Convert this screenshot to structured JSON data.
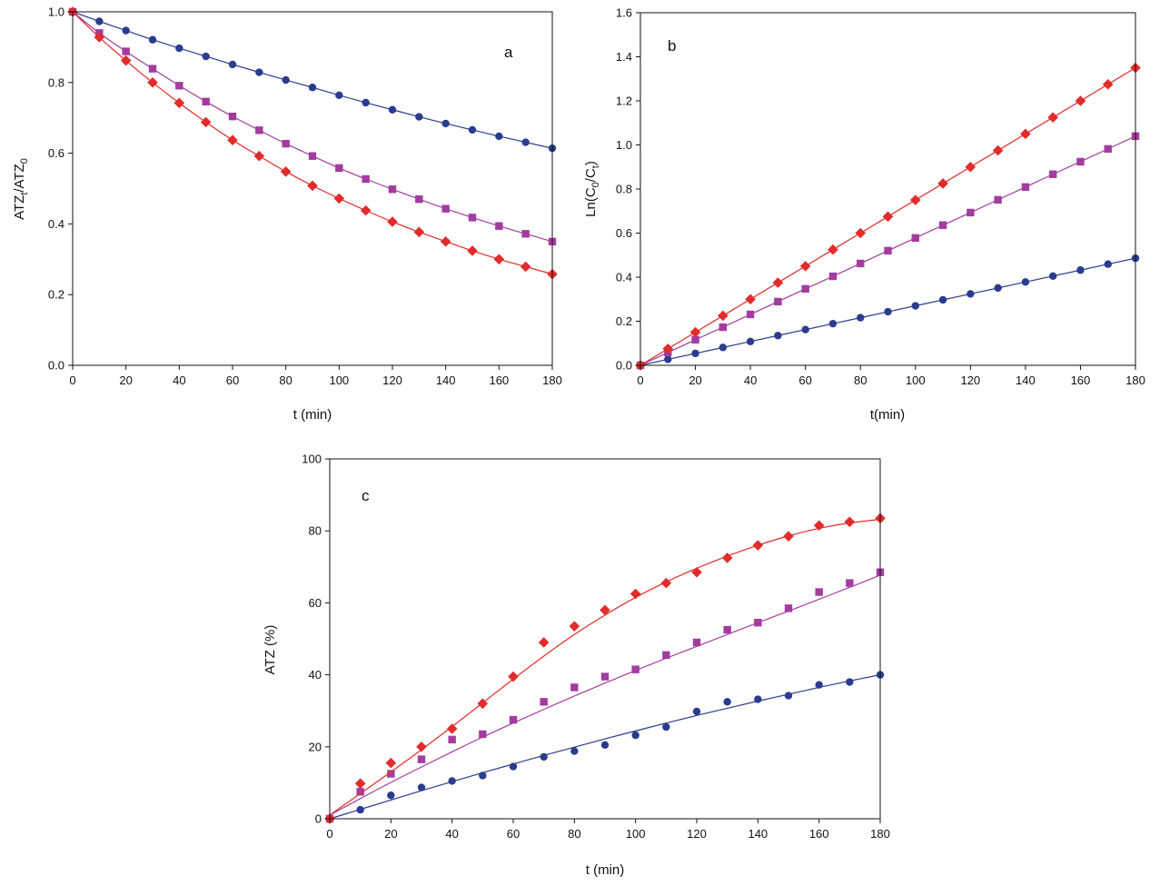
{
  "colors": {
    "blue": "#2b3c8f",
    "magenta": "#a23c9f",
    "red": "#e22b2b",
    "axis": "#111111"
  },
  "chart_data": [
    {
      "type": "line",
      "panel": "a",
      "xlabel": "t (min)",
      "ylabel": {
        "base": "ATZ",
        "sub1": "t",
        "mid": "/ATZ",
        "sub2": "0"
      },
      "xlim": [
        0,
        180
      ],
      "ylim": [
        0.0,
        1.0
      ],
      "xticks": [
        0,
        20,
        40,
        60,
        80,
        100,
        120,
        140,
        160,
        180
      ],
      "yticks": [
        0.0,
        0.2,
        0.4,
        0.6,
        0.8,
        1.0
      ],
      "x_tick_labels": [
        "0",
        "20",
        "40",
        "60",
        "80",
        "100",
        "120",
        "140",
        "160",
        "180"
      ],
      "y_tick_labels": [
        "0.0",
        "0.2",
        "0.4",
        "0.6",
        "0.8",
        "1.0"
      ],
      "x": [
        0,
        10,
        20,
        30,
        40,
        50,
        60,
        70,
        80,
        90,
        100,
        110,
        120,
        130,
        140,
        150,
        160,
        170,
        180
      ],
      "series": [
        {
          "name": "blue-circles",
          "marker": "circle",
          "color": "#2b3c8f",
          "values": [
            1.0,
            0.973,
            0.947,
            0.921,
            0.897,
            0.874,
            0.851,
            0.829,
            0.807,
            0.786,
            0.764,
            0.743,
            0.723,
            0.703,
            0.684,
            0.666,
            0.648,
            0.631,
            0.614
          ]
        },
        {
          "name": "magenta-squares",
          "marker": "square",
          "color": "#a23c9f",
          "values": [
            1.0,
            0.94,
            0.888,
            0.839,
            0.791,
            0.746,
            0.704,
            0.665,
            0.627,
            0.592,
            0.558,
            0.527,
            0.498,
            0.47,
            0.443,
            0.418,
            0.394,
            0.372,
            0.35
          ]
        },
        {
          "name": "red-diamonds",
          "marker": "diamond",
          "color": "#e22b2b",
          "values": [
            1.0,
            0.928,
            0.862,
            0.8,
            0.742,
            0.688,
            0.637,
            0.592,
            0.548,
            0.508,
            0.472,
            0.438,
            0.406,
            0.377,
            0.35,
            0.324,
            0.3,
            0.279,
            0.258
          ]
        }
      ]
    },
    {
      "type": "line",
      "panel": "b",
      "xlabel": "t(min)",
      "ylabel": {
        "base": "Ln(C",
        "sub1": "0",
        "mid": "/C",
        "sub2": "t",
        "end": ")"
      },
      "xlim": [
        0,
        180
      ],
      "ylim": [
        0.0,
        1.6
      ],
      "xticks": [
        0,
        20,
        40,
        60,
        80,
        100,
        120,
        140,
        160,
        180
      ],
      "yticks": [
        0.0,
        0.2,
        0.4,
        0.6,
        0.8,
        1.0,
        1.2,
        1.4,
        1.6
      ],
      "x_tick_labels": [
        "0",
        "20",
        "40",
        "60",
        "80",
        "100",
        "120",
        "140",
        "160",
        "180"
      ],
      "y_tick_labels": [
        "0.0",
        "0.2",
        "0.4",
        "0.6",
        "0.8",
        "1.0",
        "1.2",
        "1.4",
        "1.6"
      ],
      "x": [
        0,
        10,
        20,
        30,
        40,
        50,
        60,
        70,
        80,
        90,
        100,
        110,
        120,
        130,
        140,
        150,
        160,
        170,
        180
      ],
      "series": [
        {
          "name": "blue-circles",
          "marker": "circle",
          "color": "#2b3c8f",
          "values": [
            0.0,
            0.027,
            0.054,
            0.081,
            0.108,
            0.135,
            0.162,
            0.189,
            0.216,
            0.243,
            0.27,
            0.297,
            0.324,
            0.351,
            0.378,
            0.405,
            0.432,
            0.459,
            0.486
          ]
        },
        {
          "name": "magenta-squares",
          "marker": "square",
          "color": "#a23c9f",
          "values": [
            0.0,
            0.058,
            0.116,
            0.173,
            0.231,
            0.289,
            0.347,
            0.404,
            0.462,
            0.52,
            0.578,
            0.636,
            0.693,
            0.751,
            0.809,
            0.867,
            0.924,
            0.982,
            1.04
          ]
        },
        {
          "name": "red-diamonds",
          "marker": "diamond",
          "color": "#e22b2b",
          "values": [
            0.0,
            0.075,
            0.15,
            0.225,
            0.3,
            0.375,
            0.45,
            0.525,
            0.6,
            0.675,
            0.75,
            0.825,
            0.9,
            0.975,
            1.05,
            1.125,
            1.2,
            1.275,
            1.35
          ]
        }
      ]
    },
    {
      "type": "scatter",
      "panel": "c",
      "xlabel": "t (min)",
      "ylabel": {
        "base": "ATZ (%)"
      },
      "xlim": [
        0,
        180
      ],
      "ylim": [
        0,
        100
      ],
      "xticks": [
        0,
        20,
        40,
        60,
        80,
        100,
        120,
        140,
        160,
        180
      ],
      "yticks": [
        0,
        20,
        40,
        60,
        80,
        100
      ],
      "x_tick_labels": [
        "0",
        "20",
        "40",
        "60",
        "80",
        "100",
        "120",
        "140",
        "160",
        "180"
      ],
      "y_tick_labels": [
        "0",
        "20",
        "40",
        "60",
        "80",
        "100"
      ],
      "x": [
        0,
        10,
        20,
        30,
        40,
        50,
        60,
        70,
        80,
        90,
        100,
        110,
        120,
        130,
        140,
        150,
        160,
        170,
        180
      ],
      "series": [
        {
          "name": "blue-circles",
          "marker": "circle",
          "color": "#2b3c8f",
          "values": [
            0,
            2.5,
            6.5,
            8.7,
            10.5,
            12.0,
            14.5,
            17.2,
            18.8,
            20.5,
            23.2,
            25.5,
            29.8,
            32.5,
            33.2,
            34.2,
            37.2,
            38.0,
            40.0
          ],
          "fit": [
            0,
            2.6,
            5.2,
            7.8,
            10.3,
            12.8,
            15.2,
            17.6,
            19.9,
            22.2,
            24.4,
            26.6,
            28.7,
            30.7,
            32.7,
            34.6,
            36.5,
            38.3,
            40.0
          ]
        },
        {
          "name": "magenta-squares",
          "marker": "square",
          "color": "#a23c9f",
          "values": [
            0,
            7.5,
            12.5,
            16.5,
            22.0,
            23.5,
            27.5,
            32.5,
            36.5,
            39.5,
            41.5,
            45.5,
            49.0,
            52.5,
            54.5,
            58.5,
            63.0,
            65.5,
            68.5
          ],
          "fit": [
            1,
            5.6,
            10.1,
            14.4,
            18.6,
            22.7,
            26.6,
            30.4,
            34.1,
            37.7,
            41.2,
            44.6,
            47.9,
            51.2,
            54.5,
            57.7,
            61.0,
            64.3,
            67.7
          ]
        },
        {
          "name": "red-diamonds",
          "marker": "diamond",
          "color": "#e22b2b",
          "values": [
            0,
            9.8,
            15.5,
            20.0,
            25.0,
            32.0,
            39.5,
            49.0,
            53.5,
            58.0,
            62.5,
            65.5,
            68.5,
            72.5,
            76.0,
            78.5,
            81.5,
            82.5,
            83.5
          ],
          "fit": [
            1,
            7.0,
            13.0,
            19.2,
            25.6,
            32.2,
            38.8,
            45.2,
            51.2,
            56.6,
            61.5,
            65.8,
            69.6,
            73.0,
            76.0,
            78.6,
            80.7,
            82.2,
            83.2
          ]
        }
      ]
    }
  ]
}
